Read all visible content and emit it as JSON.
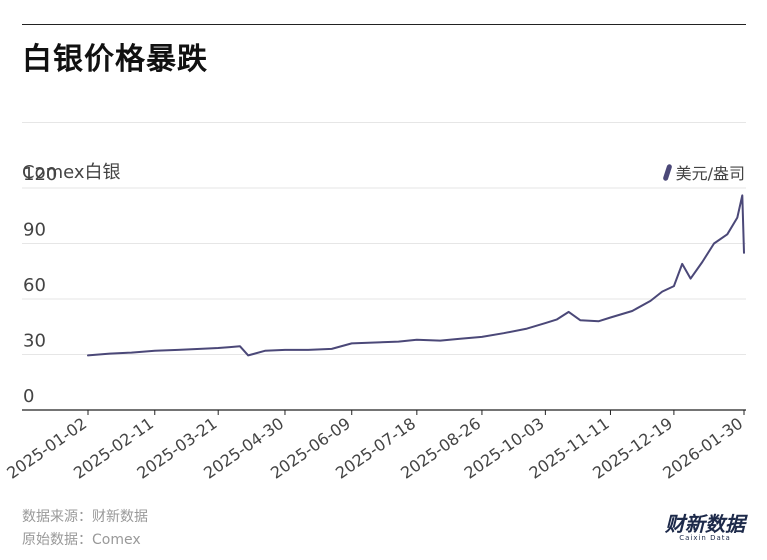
{
  "header": {
    "title": "白银价格暴跌"
  },
  "footer": {
    "source": "数据来源：财新数据",
    "original": "原始数据：Comex"
  },
  "brand": {
    "name": "财新数据",
    "sub": "Caixin Data"
  },
  "colors": {
    "line": "#4b4878",
    "grid": "#e6e6e6",
    "axis": "#222222"
  },
  "chart_data": {
    "type": "line",
    "title": "白银价格暴跌",
    "series_title": "Comex白银",
    "unit_label": "美元/盎司",
    "xlabel": "",
    "ylabel": "",
    "ylim": [
      0,
      120
    ],
    "yticks": [
      0,
      30,
      60,
      90,
      120
    ],
    "xticks": [
      "2025-01-02",
      "2025-02-11",
      "2025-03-21",
      "2025-04-30",
      "2025-06-09",
      "2025-07-18",
      "2025-08-26",
      "2025-10-03",
      "2025-11-11",
      "2025-12-19",
      "2026-01-30"
    ],
    "grid": true,
    "legend": "top-right",
    "series": [
      {
        "name": "美元/盎司",
        "x": [
          "2025-01-02",
          "2025-01-15",
          "2025-01-28",
          "2025-02-11",
          "2025-02-25",
          "2025-03-10",
          "2025-03-21",
          "2025-03-28",
          "2025-04-03",
          "2025-04-08",
          "2025-04-18",
          "2025-04-30",
          "2025-05-14",
          "2025-05-28",
          "2025-06-09",
          "2025-06-23",
          "2025-07-07",
          "2025-07-18",
          "2025-08-01",
          "2025-08-13",
          "2025-08-26",
          "2025-09-08",
          "2025-09-22",
          "2025-10-03",
          "2025-10-10",
          "2025-10-17",
          "2025-10-24",
          "2025-11-04",
          "2025-11-11",
          "2025-11-24",
          "2025-12-05",
          "2025-12-12",
          "2025-12-19",
          "2025-12-24",
          "2025-12-29",
          "2026-01-05",
          "2026-01-12",
          "2026-01-20",
          "2026-01-26",
          "2026-01-29",
          "2026-01-30"
        ],
        "y": [
          29.5,
          30.5,
          31,
          32,
          32.5,
          33,
          33.5,
          34,
          34.5,
          29.5,
          32,
          32.5,
          32.5,
          33,
          36,
          36.5,
          37,
          38,
          37.5,
          38.5,
          39.5,
          41.5,
          44,
          47,
          49,
          53,
          48.5,
          48,
          50,
          53.5,
          59,
          64,
          67,
          79,
          71,
          80,
          90,
          95,
          104,
          116,
          85
        ]
      }
    ]
  }
}
